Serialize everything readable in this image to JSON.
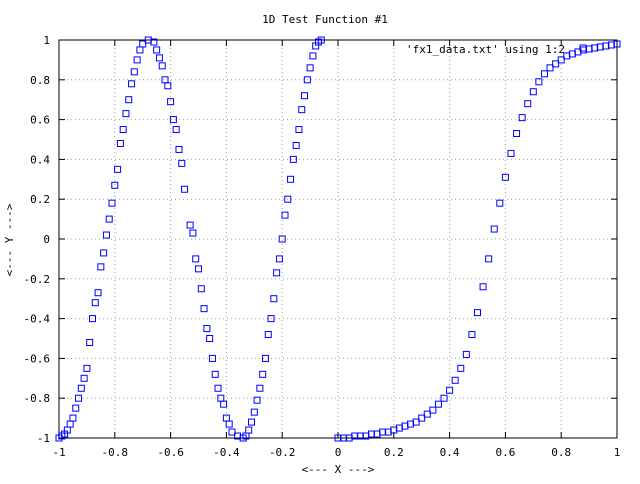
{
  "chart_data": {
    "type": "scatter",
    "title": "1D Test Function #1",
    "xlabel": "<--- X --->",
    "ylabel": "<--- Y --->",
    "xlim": [
      -1,
      1
    ],
    "ylim": [
      -1,
      1
    ],
    "xticks": [
      "-1",
      "-0.8",
      "-0.6",
      "-0.4",
      "-0.2",
      "0",
      "0.2",
      "0.4",
      "0.6",
      "0.8",
      "1"
    ],
    "yticks": [
      "-1",
      "-0.8",
      "-0.6",
      "-0.4",
      "-0.2",
      "0",
      "0.2",
      "0.4",
      "0.6",
      "0.8",
      "1"
    ],
    "grid": true,
    "legend_position": "top-right",
    "marker": "open-square",
    "series": [
      {
        "name": "'fx1_data.txt' using 1:2",
        "color": "#0000ff",
        "points": [
          [
            -1.0,
            -1.0
          ],
          [
            -0.99,
            -0.99
          ],
          [
            -0.98,
            -0.98
          ],
          [
            -0.97,
            -0.96
          ],
          [
            -0.96,
            -0.93
          ],
          [
            -0.95,
            -0.9
          ],
          [
            -0.94,
            -0.85
          ],
          [
            -0.93,
            -0.8
          ],
          [
            -0.92,
            -0.75
          ],
          [
            -0.91,
            -0.7
          ],
          [
            -0.9,
            -0.65
          ],
          [
            -0.89,
            -0.52
          ],
          [
            -0.88,
            -0.4
          ],
          [
            -0.87,
            -0.32
          ],
          [
            -0.86,
            -0.27
          ],
          [
            -0.85,
            -0.14
          ],
          [
            -0.84,
            -0.07
          ],
          [
            -0.83,
            0.02
          ],
          [
            -0.82,
            0.1
          ],
          [
            -0.81,
            0.18
          ],
          [
            -0.8,
            0.27
          ],
          [
            -0.79,
            0.35
          ],
          [
            -0.78,
            0.48
          ],
          [
            -0.77,
            0.55
          ],
          [
            -0.76,
            0.63
          ],
          [
            -0.75,
            0.7
          ],
          [
            -0.74,
            0.78
          ],
          [
            -0.73,
            0.84
          ],
          [
            -0.72,
            0.9
          ],
          [
            -0.71,
            0.95
          ],
          [
            -0.7,
            0.98
          ],
          [
            -0.68,
            1.0
          ],
          [
            -0.66,
            0.99
          ],
          [
            -0.65,
            0.95
          ],
          [
            -0.64,
            0.91
          ],
          [
            -0.63,
            0.87
          ],
          [
            -0.62,
            0.8
          ],
          [
            -0.61,
            0.77
          ],
          [
            -0.6,
            0.69
          ],
          [
            -0.59,
            0.6
          ],
          [
            -0.58,
            0.55
          ],
          [
            -0.57,
            0.45
          ],
          [
            -0.56,
            0.38
          ],
          [
            -0.55,
            0.25
          ],
          [
            -0.53,
            0.07
          ],
          [
            -0.52,
            0.03
          ],
          [
            -0.51,
            -0.1
          ],
          [
            -0.5,
            -0.15
          ],
          [
            -0.49,
            -0.25
          ],
          [
            -0.48,
            -0.35
          ],
          [
            -0.47,
            -0.45
          ],
          [
            -0.46,
            -0.5
          ],
          [
            -0.45,
            -0.6
          ],
          [
            -0.44,
            -0.68
          ],
          [
            -0.43,
            -0.75
          ],
          [
            -0.42,
            -0.8
          ],
          [
            -0.41,
            -0.83
          ],
          [
            -0.4,
            -0.9
          ],
          [
            -0.39,
            -0.93
          ],
          [
            -0.38,
            -0.97
          ],
          [
            -0.36,
            -0.99
          ],
          [
            -0.34,
            -1.0
          ],
          [
            -0.33,
            -0.99
          ],
          [
            -0.32,
            -0.96
          ],
          [
            -0.31,
            -0.92
          ],
          [
            -0.3,
            -0.87
          ],
          [
            -0.29,
            -0.81
          ],
          [
            -0.28,
            -0.75
          ],
          [
            -0.27,
            -0.68
          ],
          [
            -0.26,
            -0.6
          ],
          [
            -0.25,
            -0.48
          ],
          [
            -0.24,
            -0.4
          ],
          [
            -0.23,
            -0.3
          ],
          [
            -0.22,
            -0.17
          ],
          [
            -0.21,
            -0.1
          ],
          [
            -0.2,
            0.0
          ],
          [
            -0.19,
            0.12
          ],
          [
            -0.18,
            0.2
          ],
          [
            -0.17,
            0.3
          ],
          [
            -0.16,
            0.4
          ],
          [
            -0.15,
            0.47
          ],
          [
            -0.14,
            0.55
          ],
          [
            -0.13,
            0.65
          ],
          [
            -0.12,
            0.72
          ],
          [
            -0.11,
            0.8
          ],
          [
            -0.1,
            0.86
          ],
          [
            -0.09,
            0.92
          ],
          [
            -0.08,
            0.97
          ],
          [
            -0.07,
            0.99
          ],
          [
            -0.06,
            1.0
          ],
          [
            0.0,
            -1.0
          ],
          [
            0.02,
            -1.0
          ],
          [
            0.04,
            -1.0
          ],
          [
            0.06,
            -0.99
          ],
          [
            0.08,
            -0.99
          ],
          [
            0.1,
            -0.99
          ],
          [
            0.12,
            -0.98
          ],
          [
            0.14,
            -0.98
          ],
          [
            0.16,
            -0.97
          ],
          [
            0.18,
            -0.97
          ],
          [
            0.2,
            -0.96
          ],
          [
            0.22,
            -0.95
          ],
          [
            0.24,
            -0.94
          ],
          [
            0.26,
            -0.93
          ],
          [
            0.28,
            -0.92
          ],
          [
            0.3,
            -0.9
          ],
          [
            0.32,
            -0.88
          ],
          [
            0.34,
            -0.86
          ],
          [
            0.36,
            -0.83
          ],
          [
            0.38,
            -0.8
          ],
          [
            0.4,
            -0.76
          ],
          [
            0.42,
            -0.71
          ],
          [
            0.44,
            -0.65
          ],
          [
            0.46,
            -0.58
          ],
          [
            0.48,
            -0.48
          ],
          [
            0.5,
            -0.37
          ],
          [
            0.52,
            -0.24
          ],
          [
            0.54,
            -0.1
          ],
          [
            0.56,
            0.05
          ],
          [
            0.58,
            0.18
          ],
          [
            0.6,
            0.31
          ],
          [
            0.62,
            0.43
          ],
          [
            0.64,
            0.53
          ],
          [
            0.66,
            0.61
          ],
          [
            0.68,
            0.68
          ],
          [
            0.7,
            0.74
          ],
          [
            0.72,
            0.79
          ],
          [
            0.74,
            0.83
          ],
          [
            0.76,
            0.86
          ],
          [
            0.78,
            0.88
          ],
          [
            0.8,
            0.9
          ],
          [
            0.82,
            0.92
          ],
          [
            0.84,
            0.93
          ],
          [
            0.86,
            0.94
          ],
          [
            0.88,
            0.95
          ],
          [
            0.9,
            0.955
          ],
          [
            0.92,
            0.96
          ],
          [
            0.94,
            0.965
          ],
          [
            0.96,
            0.97
          ],
          [
            0.98,
            0.975
          ],
          [
            1.0,
            0.98
          ]
        ]
      }
    ]
  }
}
